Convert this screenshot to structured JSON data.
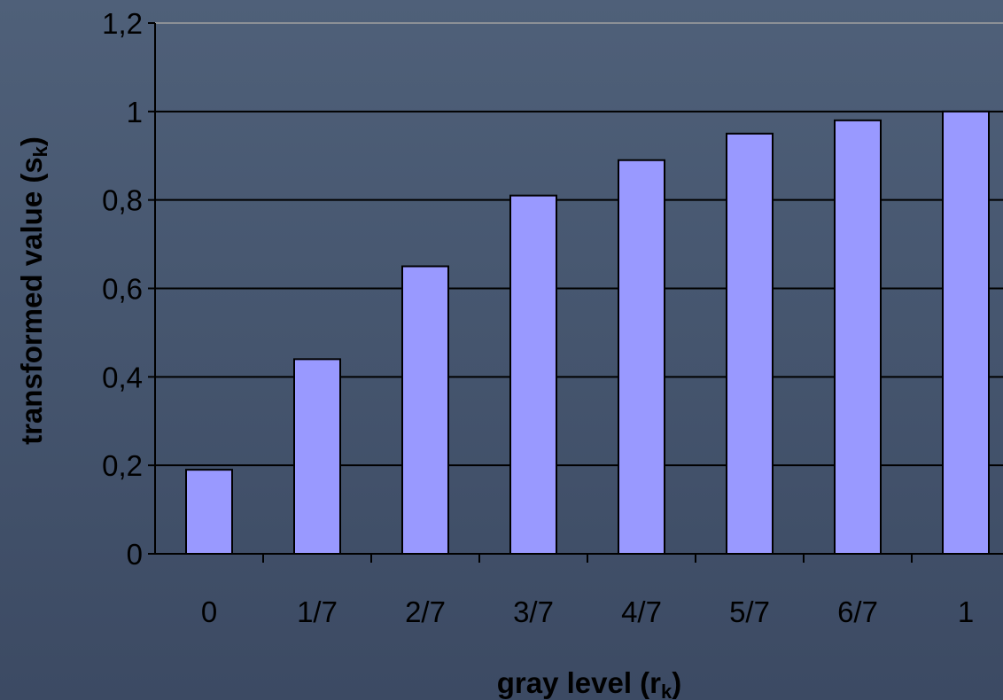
{
  "chart_data": {
    "type": "bar",
    "categories": [
      "0",
      "1/7",
      "2/7",
      "3/7",
      "4/7",
      "5/7",
      "6/7",
      "1"
    ],
    "values": [
      0.19,
      0.44,
      0.65,
      0.81,
      0.89,
      0.95,
      0.98,
      1.0
    ],
    "y_tick_labels": [
      "0",
      "0,2",
      "0,4",
      "0,6",
      "0,8",
      "1",
      "1,2"
    ],
    "y_ticks": [
      0,
      0.2,
      0.4,
      0.6,
      0.8,
      1.0,
      1.2
    ],
    "ylim": [
      0,
      1.2
    ],
    "xlabel": {
      "text": "gray level (r",
      "sub": "k",
      "close": ")"
    },
    "ylabel": {
      "text": "transformed value (s",
      "sub": "k",
      "close": ")"
    },
    "grid": true,
    "legend": "none",
    "colors": {
      "bar_fill": "#9999ff",
      "bar_stroke": "#000000",
      "gridline": "#000000",
      "top_gridline": "#a0a0a0"
    }
  }
}
